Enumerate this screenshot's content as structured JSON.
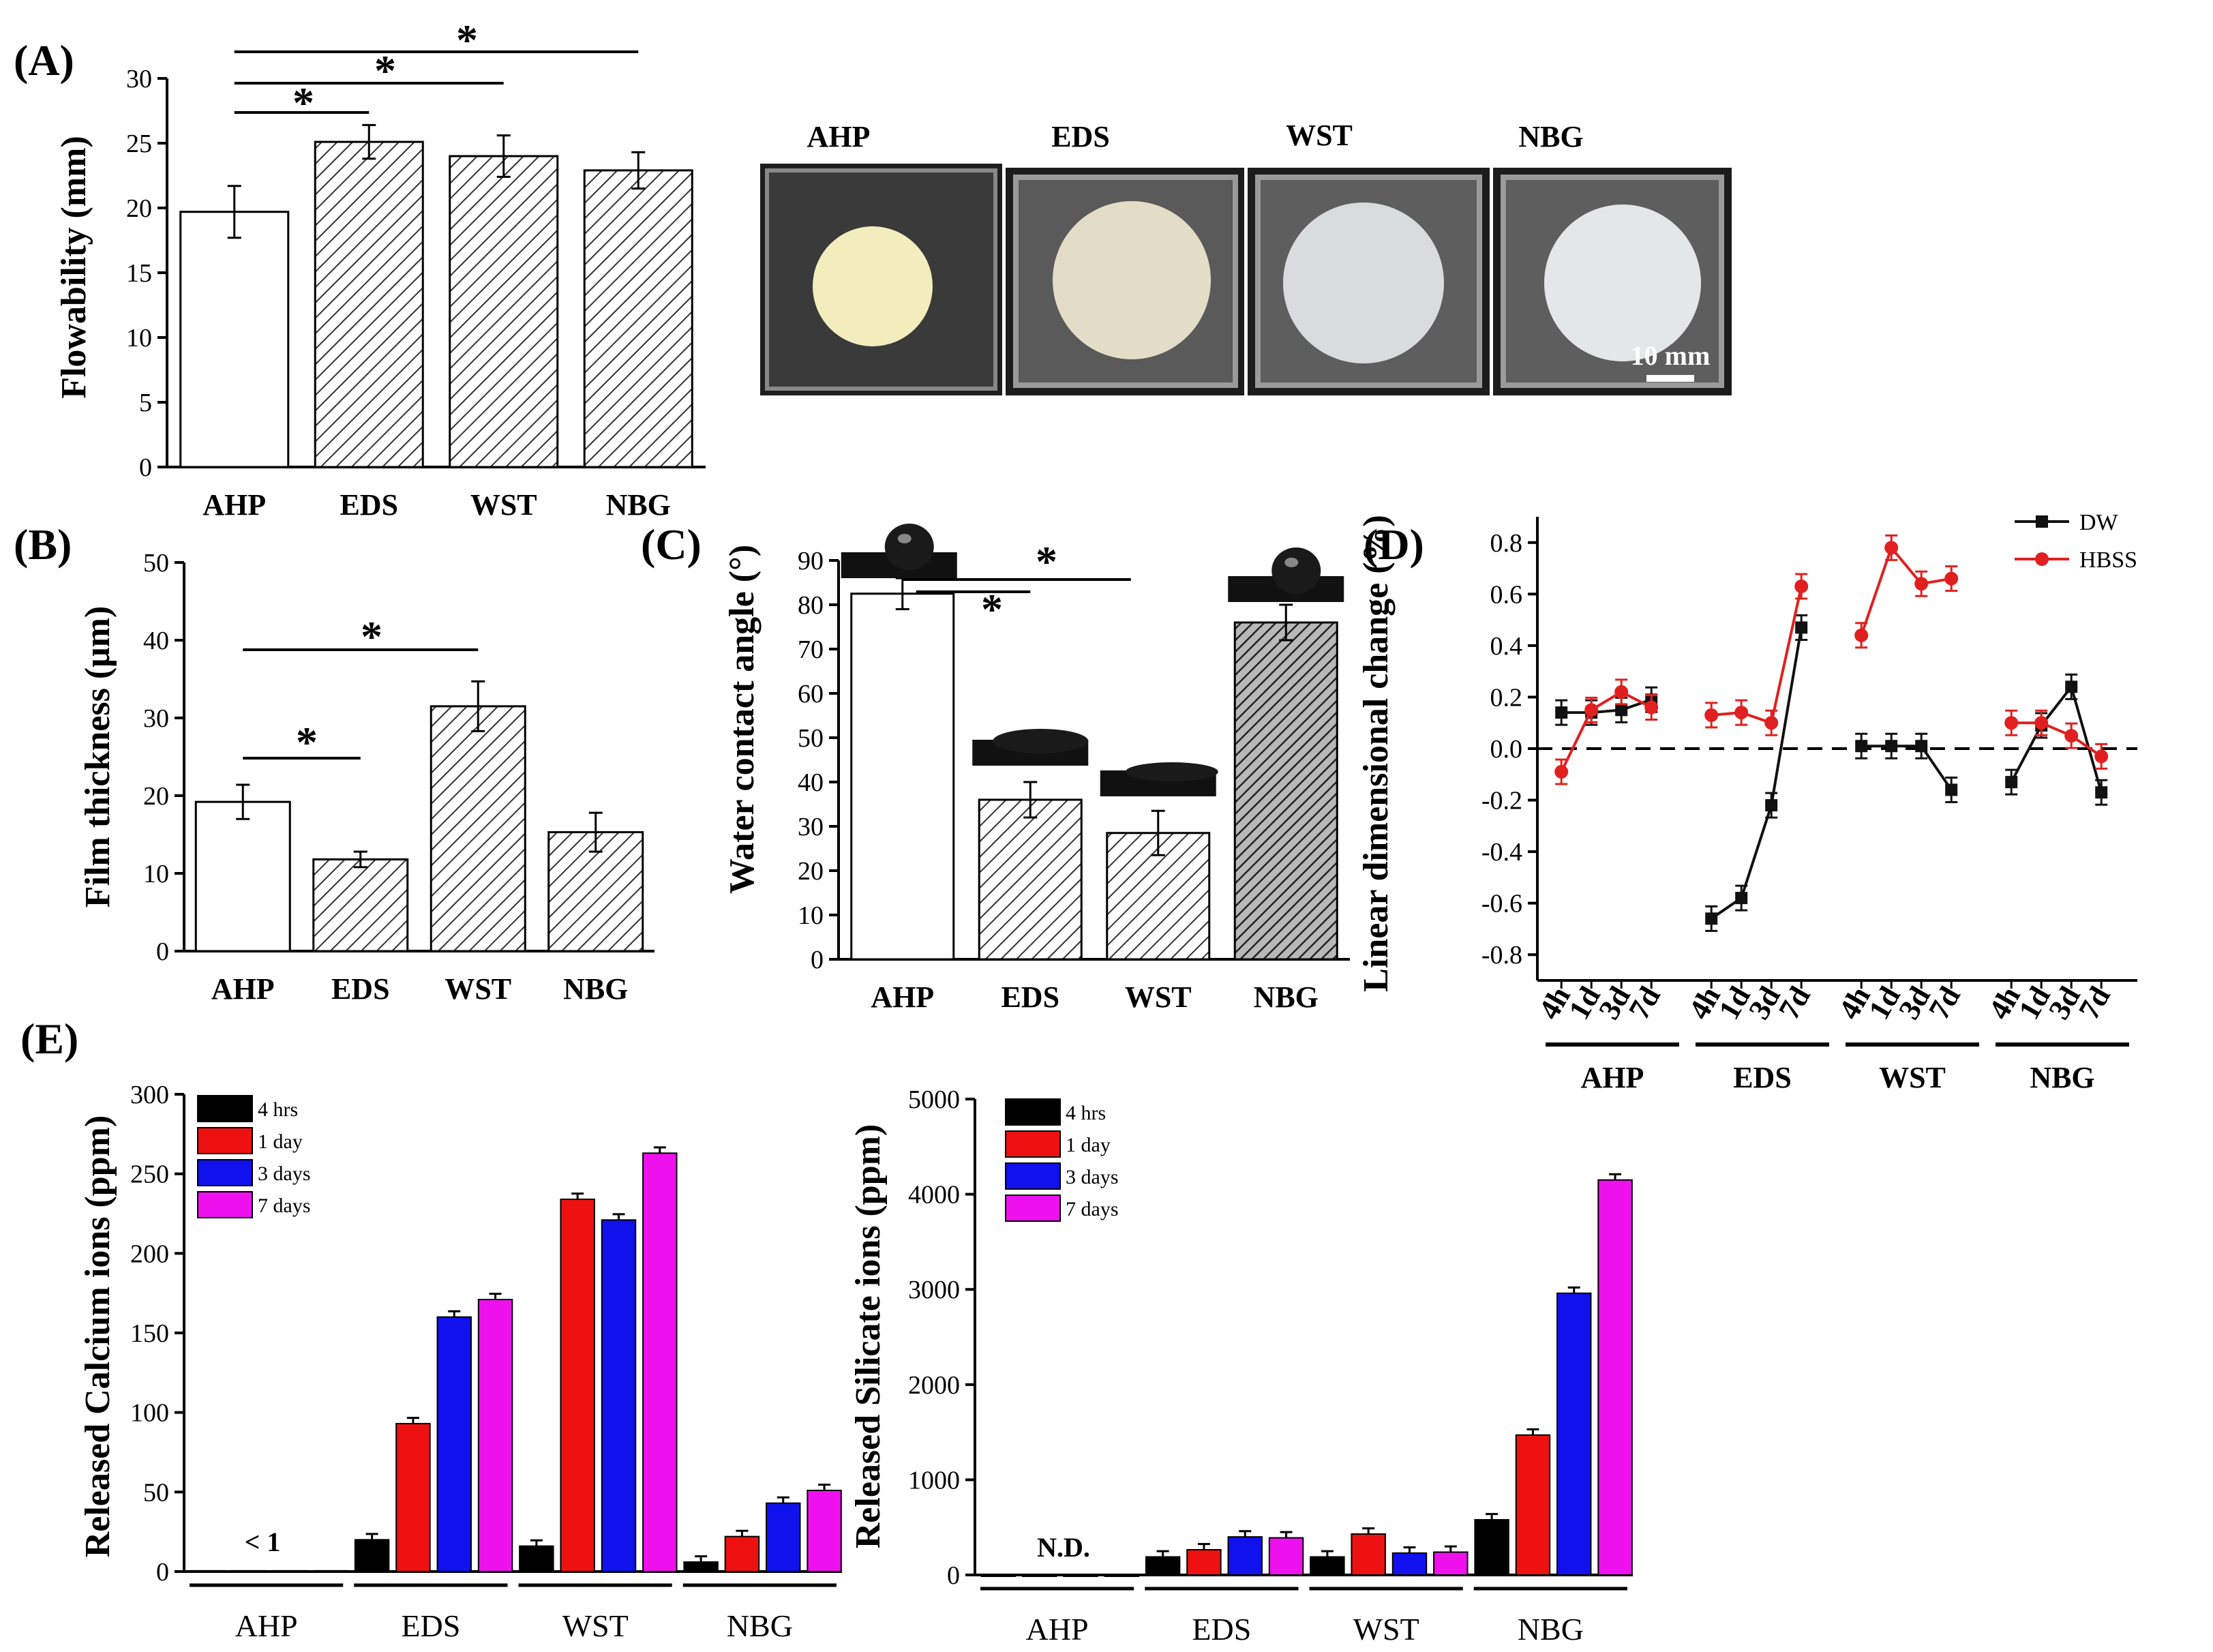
{
  "figure_title": "",
  "colors": {
    "black": "#000000",
    "red": "#ee1111",
    "blue": "#1111ee",
    "magenta": "#ee11ee",
    "dw": "#111111",
    "hbss": "#e02020",
    "hatch_fill": "#d6d6d6",
    "dark_hatch_fill": "#9a9a9a"
  },
  "photos": {
    "labels": [
      "AHP",
      "EDS",
      "WST",
      "NBG"
    ],
    "scale_bar": "10 mm"
  },
  "chart_data": [
    {
      "id": "A",
      "panel_label": "(A)",
      "type": "bar",
      "ylabel": "Flowability (mm)",
      "categories": [
        "AHP",
        "EDS",
        "WST",
        "NBG"
      ],
      "values": [
        19.7,
        25.1,
        24.0,
        22.9
      ],
      "errors": [
        2.0,
        1.3,
        1.6,
        1.4
      ],
      "ylim": [
        0,
        30
      ],
      "yticks": [
        0,
        5,
        10,
        15,
        20,
        25,
        30
      ],
      "significance": [
        {
          "from": "AHP",
          "to": "EDS",
          "label": "*"
        },
        {
          "from": "AHP",
          "to": "WST",
          "label": "*"
        },
        {
          "from": "AHP",
          "to": "NBG",
          "label": "*"
        }
      ]
    },
    {
      "id": "B",
      "panel_label": "(B)",
      "type": "bar",
      "ylabel": "Film thickness (μm)",
      "categories": [
        "AHP",
        "EDS",
        "WST",
        "NBG"
      ],
      "values": [
        19.2,
        11.8,
        31.5,
        15.3
      ],
      "errors": [
        2.2,
        1.0,
        3.2,
        2.5
      ],
      "ylim": [
        0,
        50
      ],
      "yticks": [
        0,
        10,
        20,
        30,
        40,
        50
      ],
      "significance": [
        {
          "from": "AHP",
          "to": "EDS",
          "label": "*"
        },
        {
          "from": "AHP",
          "to": "WST",
          "label": "*"
        }
      ]
    },
    {
      "id": "C",
      "panel_label": "(C)",
      "type": "bar",
      "ylabel": "Water contact angle (°)",
      "categories": [
        "AHP",
        "EDS",
        "WST",
        "NBG"
      ],
      "values": [
        82.5,
        36.0,
        28.5,
        76.0
      ],
      "errors": [
        3.5,
        4.0,
        5.0,
        4.0
      ],
      "ylim": [
        0,
        90
      ],
      "yticks": [
        0,
        10,
        20,
        30,
        40,
        50,
        60,
        70,
        80,
        90
      ],
      "significance": [
        {
          "from": "AHP",
          "to": "EDS",
          "label": "*"
        },
        {
          "from": "AHP",
          "to": "WST",
          "label": "*"
        }
      ]
    },
    {
      "id": "D",
      "panel_label": "(D)",
      "type": "line",
      "ylabel": "Linear dimensional change (%)",
      "groups": [
        "AHP",
        "EDS",
        "WST",
        "NBG"
      ],
      "timepoints": [
        "4h",
        "1d",
        "3d",
        "7d"
      ],
      "ylim": [
        -0.9,
        0.9
      ],
      "yticks": [
        -0.8,
        -0.6,
        -0.4,
        -0.2,
        0.0,
        0.2,
        0.4,
        0.6,
        0.8
      ],
      "ytick_labels": [
        "-0.8",
        "-0.6",
        "-0.4",
        "-0.2",
        "0.0",
        "0.2",
        "0.4",
        "0.6",
        "0.8"
      ],
      "series": [
        {
          "name": "DW",
          "values": [
            [
              0.14,
              0.14,
              0.15,
              0.19
            ],
            [
              -0.66,
              -0.58,
              -0.22,
              0.47
            ],
            [
              0.01,
              0.01,
              0.01,
              -0.16
            ],
            [
              -0.13,
              0.09,
              0.24,
              -0.17
            ]
          ]
        },
        {
          "name": "HBSS",
          "values": [
            [
              -0.09,
              0.15,
              0.22,
              0.16
            ],
            [
              0.13,
              0.14,
              0.1,
              0.63
            ],
            [
              0.44,
              0.78,
              0.64,
              0.66
            ],
            [
              0.1,
              0.1,
              0.05,
              -0.03
            ]
          ]
        }
      ]
    },
    {
      "id": "E1",
      "panel_label": "(E)",
      "type": "bar",
      "ylabel": "Released Calcium ions (ppm)",
      "categories": [
        "AHP",
        "EDS",
        "WST",
        "NBG"
      ],
      "legend": [
        "4 hrs",
        "1 day",
        "3 days",
        "7 days"
      ],
      "series": [
        {
          "name": "4 hrs",
          "values": [
            0.5,
            20,
            16,
            6
          ]
        },
        {
          "name": "1 day",
          "values": [
            0.5,
            93,
            234,
            22
          ]
        },
        {
          "name": "3 days",
          "values": [
            0.5,
            160,
            221,
            43
          ]
        },
        {
          "name": "7 days",
          "values": [
            0.5,
            171,
            263,
            51
          ]
        }
      ],
      "ylim": [
        0,
        300
      ],
      "yticks": [
        0,
        50,
        100,
        150,
        200,
        250,
        300
      ],
      "annotation": "< 1"
    },
    {
      "id": "E2",
      "type": "bar",
      "ylabel": "Released Silicate ions (ppm)",
      "categories": [
        "AHP",
        "EDS",
        "WST",
        "NBG"
      ],
      "legend": [
        "4 hrs",
        "1 day",
        "3 days",
        "7 days"
      ],
      "series": [
        {
          "name": "4 hrs",
          "values": [
            0,
            190,
            190,
            580
          ]
        },
        {
          "name": "1 day",
          "values": [
            0,
            265,
            430,
            1470
          ]
        },
        {
          "name": "3 days",
          "values": [
            0,
            400,
            230,
            2960
          ]
        },
        {
          "name": "7 days",
          "values": [
            0,
            390,
            240,
            4150
          ]
        }
      ],
      "ylim": [
        0,
        5000
      ],
      "yticks": [
        0,
        1000,
        2000,
        3000,
        4000,
        5000
      ],
      "annotation": "N.D."
    }
  ]
}
